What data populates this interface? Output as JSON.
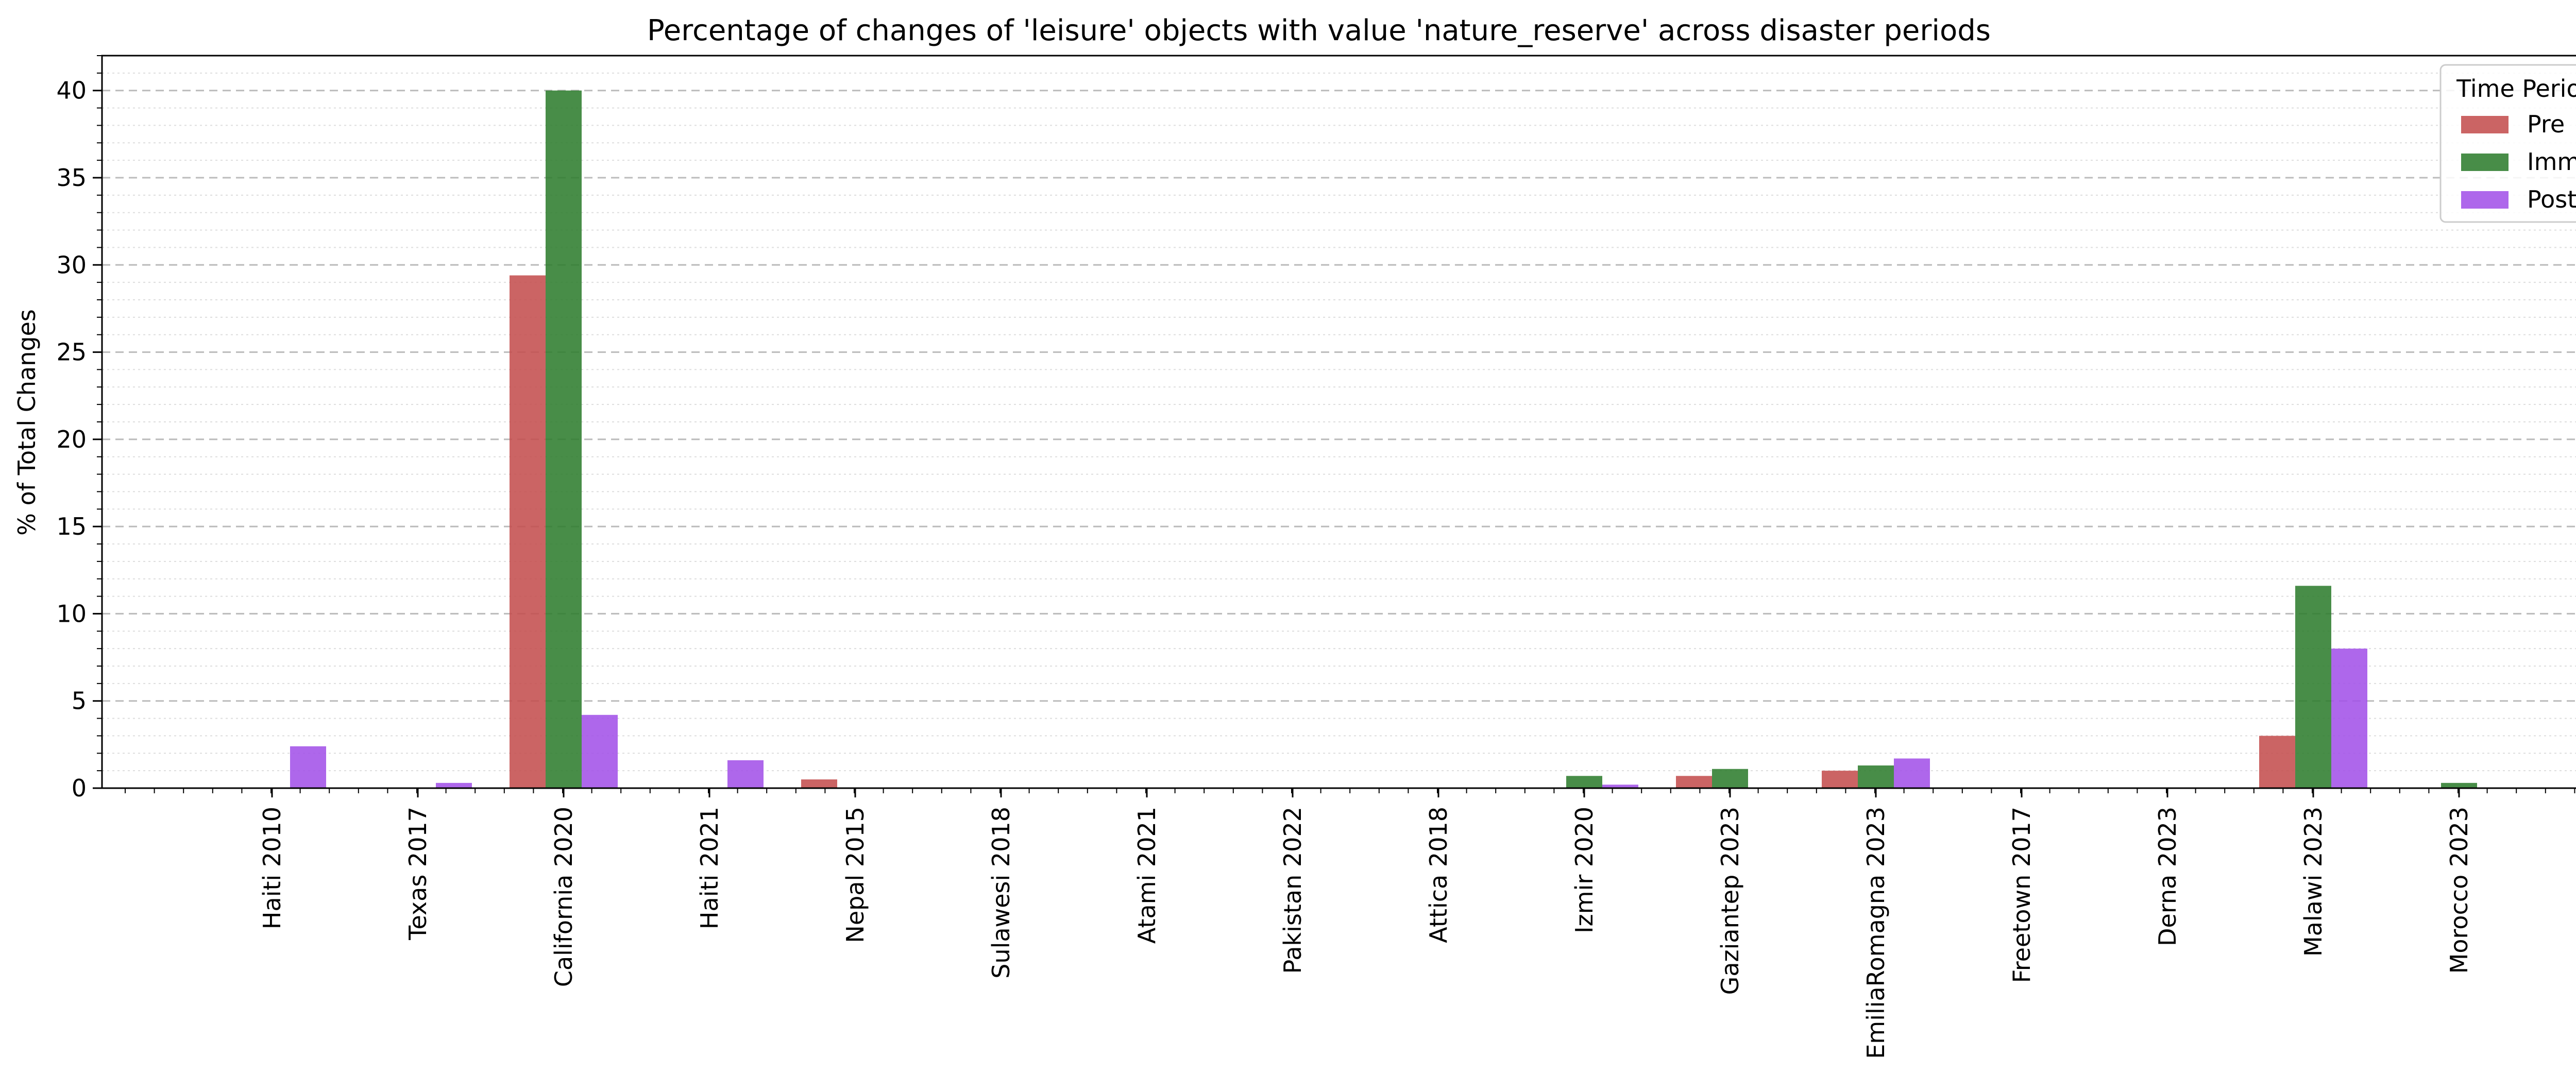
{
  "chart_data": {
    "type": "bar",
    "title": "Percentage of changes of 'leisure' objects with value 'nature_reserve' across disaster periods",
    "xlabel": "",
    "ylabel": "% of Total Changes",
    "ylim": [
      0,
      42
    ],
    "yticks": [
      0,
      5,
      10,
      15,
      20,
      25,
      30,
      35,
      40
    ],
    "grid": true,
    "legend": {
      "title": "Time Period",
      "placement": "top-right"
    },
    "categories": [
      "Haiti 2010",
      "Texas 2017",
      "California 2020",
      "Haiti 2021",
      "Nepal 2015",
      "Sulawesi 2018",
      "Atami 2021",
      "Pakistan 2022",
      "Attica 2018",
      "Izmir 2020",
      "Gaziantep 2023",
      "EmiliaRomagna 2023",
      "Freetown 2017",
      "Derna 2023",
      "Malawi 2023",
      "Morocco 2023"
    ],
    "series": [
      {
        "name": "Pre",
        "color": "#c44e4e",
        "values": [
          0,
          0,
          29.4,
          0,
          0.5,
          0,
          0,
          0,
          0,
          0,
          0.7,
          1.0,
          0,
          0,
          3.0,
          0
        ]
      },
      {
        "name": "Imm",
        "color": "#2f7d2f",
        "values": [
          0,
          0,
          40.0,
          0,
          0,
          0,
          0,
          0,
          0,
          0.7,
          1.1,
          1.3,
          0,
          0,
          11.6,
          0.3
        ]
      },
      {
        "name": "Post",
        "color": "#a352e8",
        "values": [
          2.4,
          0.3,
          4.2,
          1.6,
          0,
          0,
          0,
          0,
          0,
          0.2,
          0,
          1.7,
          0,
          0,
          8.0,
          0
        ]
      }
    ]
  }
}
